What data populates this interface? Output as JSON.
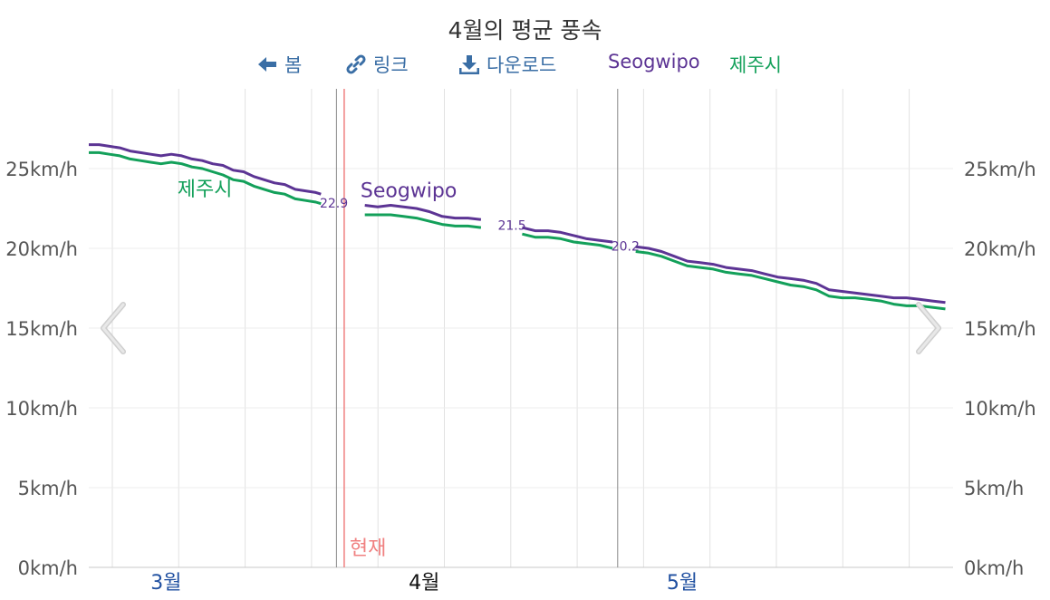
{
  "title": "4월의 평균 풍속",
  "toolbar": {
    "prev_label": "봄",
    "link_label": "링크",
    "download_label": "다운로드"
  },
  "icons": {
    "prev": "arrow-left-icon",
    "link": "link-icon",
    "download": "download-icon",
    "nav_left": "chevron-left-icon",
    "nav_right": "chevron-right-icon"
  },
  "colors": {
    "series_a": "#5c3494",
    "series_b": "#13a05a",
    "now_line": "#f08080",
    "month_label": "#1f4fa0",
    "link": "#3a6ea5"
  },
  "chart_data": {
    "type": "line",
    "title": "4월의 평균 풍속",
    "x_unit": "month",
    "x_range": [
      2.2,
      5.55
    ],
    "y_unit": "km/h",
    "ylim": [
      0,
      30
    ],
    "y_ticks": [
      "0km/h",
      "5km/h",
      "10km/h",
      "15km/h",
      "20km/h",
      "25km/h"
    ],
    "y_tick_values": [
      0,
      5,
      10,
      15,
      20,
      25
    ],
    "month_labels": [
      {
        "label": "3월",
        "x": 2.5
      },
      {
        "label": "4월",
        "x": 3.5
      },
      {
        "label": "5월",
        "x": 4.5
      }
    ],
    "current_month_label": "4월",
    "now_label": "현재",
    "now_x": 3.19,
    "divider_x": [
      3.16,
      4.25
    ],
    "legend_placement": "top",
    "grid": true,
    "series": [
      {
        "name": "Seogwipo",
        "segments": [
          {
            "x": [
              2.2,
              2.24,
              2.28,
              2.32,
              2.36,
              2.4,
              2.44,
              2.48,
              2.52,
              2.56,
              2.6,
              2.64,
              2.68,
              2.72,
              2.76,
              2.8,
              2.84,
              2.88,
              2.92,
              2.96,
              3.0,
              3.04,
              3.08,
              3.1
            ],
            "y": [
              26.5,
              26.5,
              26.4,
              26.3,
              26.1,
              26.0,
              25.9,
              25.8,
              25.9,
              25.8,
              25.6,
              25.5,
              25.3,
              25.2,
              24.9,
              24.8,
              24.5,
              24.3,
              24.1,
              24.0,
              23.7,
              23.6,
              23.5,
              23.4
            ]
          },
          {
            "x": [
              3.27,
              3.32,
              3.37,
              3.42,
              3.47,
              3.52,
              3.57,
              3.62,
              3.67,
              3.72,
              3.77,
              3.82,
              3.87,
              3.92
            ],
            "y": [
              22.7,
              22.6,
              22.7,
              22.6,
              22.5,
              22.3,
              22.0,
              21.9,
              21.9,
              21.8,
              null,
              null,
              null,
              null
            ]
          },
          {
            "x": [
              3.88,
              3.93,
              3.98,
              4.03,
              4.08,
              4.13,
              4.18,
              4.23
            ],
            "y": [
              21.3,
              21.1,
              21.1,
              21.0,
              20.8,
              20.6,
              20.5,
              20.4
            ]
          },
          {
            "x": [
              4.32,
              4.37,
              4.42,
              4.47,
              4.52,
              4.57,
              4.62,
              4.67,
              4.72,
              4.77,
              4.82,
              4.87,
              4.92,
              4.97,
              5.02,
              5.07,
              5.12,
              5.17,
              5.22,
              5.27,
              5.32,
              5.37,
              5.42,
              5.47,
              5.52
            ],
            "y": [
              20.1,
              20.0,
              19.8,
              19.5,
              19.2,
              19.1,
              19.0,
              18.8,
              18.7,
              18.6,
              18.4,
              18.2,
              18.1,
              18.0,
              17.8,
              17.4,
              17.3,
              17.2,
              17.1,
              17.0,
              16.9,
              16.9,
              16.8,
              16.7,
              16.6
            ]
          }
        ],
        "point_labels": [
          {
            "text": "22.9",
            "x": 3.15,
            "y": 22.9
          },
          {
            "text": "21.5",
            "x": 3.84,
            "y": 21.5
          },
          {
            "text": "20.2",
            "x": 4.28,
            "y": 20.2
          }
        ],
        "series_label": {
          "text": "Seogwipo",
          "x": 3.44,
          "y": 23.2
        }
      },
      {
        "name": "제주시",
        "segments": [
          {
            "x": [
              2.2,
              2.24,
              2.28,
              2.32,
              2.36,
              2.4,
              2.44,
              2.48,
              2.52,
              2.56,
              2.6,
              2.64,
              2.68,
              2.72,
              2.76,
              2.8,
              2.84,
              2.88,
              2.92,
              2.96,
              3.0,
              3.04,
              3.08,
              3.1
            ],
            "y": [
              26.0,
              26.0,
              25.9,
              25.8,
              25.6,
              25.5,
              25.4,
              25.3,
              25.4,
              25.3,
              25.1,
              25.0,
              24.8,
              24.6,
              24.3,
              24.2,
              23.9,
              23.7,
              23.5,
              23.4,
              23.1,
              23.0,
              22.9,
              22.8
            ]
          },
          {
            "x": [
              3.27,
              3.32,
              3.37,
              3.42,
              3.47,
              3.52,
              3.57,
              3.62,
              3.67,
              3.72,
              3.77
            ],
            "y": [
              22.1,
              22.1,
              22.1,
              22.0,
              21.9,
              21.7,
              21.5,
              21.4,
              21.4,
              21.3,
              null
            ]
          },
          {
            "x": [
              3.88,
              3.93,
              3.98,
              4.03,
              4.08,
              4.13,
              4.18,
              4.23
            ],
            "y": [
              20.9,
              20.7,
              20.7,
              20.6,
              20.4,
              20.3,
              20.2,
              20.0
            ]
          },
          {
            "x": [
              4.32,
              4.37,
              4.42,
              4.47,
              4.52,
              4.57,
              4.62,
              4.67,
              4.72,
              4.77,
              4.82,
              4.87,
              4.92,
              4.97,
              5.02,
              5.07,
              5.12,
              5.17,
              5.22,
              5.27,
              5.32,
              5.37,
              5.42,
              5.47,
              5.52
            ],
            "y": [
              19.8,
              19.7,
              19.5,
              19.2,
              18.9,
              18.8,
              18.7,
              18.5,
              18.4,
              18.3,
              18.1,
              17.9,
              17.7,
              17.6,
              17.4,
              17.0,
              16.9,
              16.9,
              16.8,
              16.7,
              16.5,
              16.4,
              16.4,
              16.3,
              16.2
            ]
          }
        ],
        "series_label": {
          "text": "제주시",
          "x": 2.65,
          "y": 23.3
        }
      }
    ]
  }
}
